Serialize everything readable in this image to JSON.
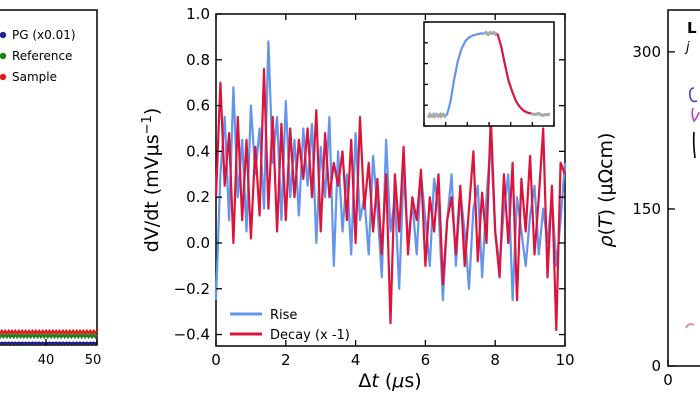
{
  "chart_data": [
    {
      "type": "line",
      "panel": "left (cropped)",
      "xlim": [
        30,
        50
      ],
      "x_ticks": [
        "40",
        "50"
      ],
      "legend": {
        "placement": "top",
        "entries": [
          {
            "name": "PG (x0.01)",
            "color": "#1f1f8f"
          },
          {
            "name": "Reference",
            "color": "#1a7f1a"
          },
          {
            "name": "Sample",
            "color": "#e31a1c"
          }
        ]
      },
      "series": [
        {
          "name": "Reference",
          "color": "#1a7f1a",
          "approx_level": "flat, lowest part of panel"
        },
        {
          "name": "Sample",
          "color": "#e31a1c",
          "approx_level": "flat, just above axis"
        },
        {
          "name": "PG (x0.01)",
          "color": "#1f1f8f",
          "approx_level": "flat, at axis"
        }
      ]
    },
    {
      "type": "line",
      "panel": "center",
      "xlabel": "Δt (μs)",
      "ylabel": "dV/dt (mVμs⁻¹)",
      "xlim": [
        0,
        10
      ],
      "ylim": [
        -0.45,
        1.0
      ],
      "x_ticks": [
        0,
        2,
        4,
        6,
        8,
        10
      ],
      "y_ticks": [
        -0.4,
        -0.2,
        0.0,
        0.2,
        0.4,
        0.6,
        0.8,
        1.0
      ],
      "x_tick_labels": [
        "0",
        "2",
        "4",
        "6",
        "8",
        "10"
      ],
      "y_tick_labels": [
        "−0.4",
        "−0.2",
        "0.0",
        "0.2",
        "0.4",
        "0.6",
        "0.8",
        "1.0"
      ],
      "legend": {
        "placement": "bottom-left",
        "entries": [
          {
            "name": "Rise",
            "color": "#6495ed"
          },
          {
            "name": "Decay (x -1)",
            "color": "#dc143c"
          }
        ]
      },
      "x": [
        0.0,
        0.125,
        0.25,
        0.375,
        0.5,
        0.625,
        0.75,
        0.875,
        1.0,
        1.125,
        1.25,
        1.375,
        1.5,
        1.625,
        1.75,
        1.875,
        2.0,
        2.125,
        2.25,
        2.375,
        2.5,
        2.625,
        2.75,
        2.875,
        3.0,
        3.125,
        3.25,
        3.375,
        3.5,
        3.625,
        3.75,
        3.875,
        4.0,
        4.125,
        4.25,
        4.375,
        4.5,
        4.625,
        4.75,
        4.875,
        5.0,
        5.125,
        5.25,
        5.375,
        5.5,
        5.625,
        5.75,
        5.875,
        6.0,
        6.125,
        6.25,
        6.375,
        6.5,
        6.625,
        6.75,
        6.875,
        7.0,
        7.125,
        7.25,
        7.375,
        7.5,
        7.625,
        7.75,
        7.875,
        8.0,
        8.125,
        8.25,
        8.375,
        8.5,
        8.625,
        8.75,
        8.875,
        9.0,
        9.125,
        9.25,
        9.375,
        9.5,
        9.625,
        9.75,
        9.875,
        10.0
      ],
      "series": [
        {
          "name": "Rise",
          "color": "#6495ed",
          "values": [
            -0.25,
            0.3,
            0.55,
            0.1,
            0.68,
            0.2,
            0.45,
            0.05,
            0.6,
            0.3,
            0.5,
            0.15,
            0.88,
            0.35,
            0.55,
            0.1,
            0.62,
            0.2,
            0.45,
            0.12,
            0.5,
            0.25,
            0.52,
            0.0,
            0.42,
            0.2,
            0.55,
            -0.1,
            0.4,
            0.05,
            0.3,
            -0.05,
            0.48,
            0.1,
            0.2,
            -0.05,
            0.38,
            0.15,
            -0.15,
            0.45,
            0.05,
            0.2,
            -0.2,
            0.32,
            0.0,
            0.18,
            -0.05,
            0.3,
            0.1,
            -0.1,
            0.28,
            0.15,
            -0.25,
            0.1,
            0.3,
            -0.1,
            0.22,
            0.05,
            -0.2,
            0.15,
            0.25,
            -0.15,
            0.2,
            0.45,
            0.05,
            -0.1,
            0.15,
            0.3,
            -0.25,
            0.2,
            0.05,
            -0.1,
            0.12,
            0.25,
            -0.05,
            0.15,
            0.0,
            0.2,
            -0.1,
            0.1,
            0.35
          ]
        },
        {
          "name": "Decay (x -1)",
          "color": "#dc143c",
          "values": [
            0.2,
            0.7,
            0.25,
            0.48,
            0.0,
            0.55,
            0.1,
            0.45,
            0.02,
            0.42,
            0.12,
            0.76,
            0.15,
            0.55,
            0.05,
            0.52,
            0.1,
            0.5,
            0.2,
            0.45,
            0.28,
            0.5,
            0.2,
            0.58,
            0.05,
            0.48,
            0.2,
            0.35,
            0.25,
            0.4,
            0.1,
            0.45,
            0.0,
            0.55,
            0.15,
            0.35,
            0.05,
            0.28,
            -0.05,
            0.3,
            -0.35,
            0.3,
            0.05,
            0.42,
            -0.05,
            0.2,
            0.1,
            0.32,
            -0.1,
            0.2,
            0.05,
            0.3,
            -0.18,
            0.1,
            0.2,
            -0.05,
            0.25,
            -0.1,
            0.15,
            0.4,
            -0.08,
            0.22,
            0.0,
            0.55,
            0.05,
            -0.15,
            0.3,
            0.0,
            0.35,
            -0.25,
            0.28,
            0.05,
            0.38,
            -0.05,
            0.2,
            0.5,
            -0.15,
            0.25,
            -0.38,
            0.35,
            0.3
          ]
        }
      ],
      "inset": {
        "type": "line",
        "description_free": true,
        "segments": [
          {
            "color": "#aaaaaa",
            "x": [
              0,
              1,
              2,
              3,
              4,
              5,
              6,
              7,
              8,
              9,
              10,
              11,
              12,
              13,
              14,
              15,
              16,
              17,
              18,
              19,
              20
            ],
            "values": [
              0.05,
              0.04,
              0.06,
              0.05,
              0.04,
              0.05,
              0.06,
              0.04,
              0.05,
              0.06,
              0.05,
              0.04,
              0.05,
              0.06,
              0.04,
              0.05,
              0.06,
              0.05,
              0.04,
              0.05,
              0.05
            ]
          },
          {
            "color": "#6495ed",
            "x": [
              20,
              24,
              28,
              32,
              36,
              40,
              44,
              48,
              52,
              56,
              60
            ],
            "values": [
              0.05,
              0.2,
              0.45,
              0.65,
              0.78,
              0.86,
              0.9,
              0.92,
              0.93,
              0.94,
              0.94
            ]
          },
          {
            "color": "#aaaaaa",
            "x": [
              60,
              62,
              64,
              66,
              68,
              70,
              72,
              74
            ],
            "values": [
              0.94,
              0.95,
              0.93,
              0.95,
              0.94,
              0.95,
              0.93,
              0.94
            ]
          },
          {
            "color": "#dc143c",
            "x": [
              74,
              78,
              82,
              86,
              90,
              94,
              98,
              102,
              106,
              110
            ],
            "values": [
              0.94,
              0.8,
              0.6,
              0.42,
              0.3,
              0.2,
              0.14,
              0.1,
              0.08,
              0.07
            ]
          },
          {
            "color": "#aaaaaa",
            "x": [
              110,
              114,
              118,
              122,
              126,
              130
            ],
            "values": [
              0.07,
              0.06,
              0.07,
              0.05,
              0.06,
              0.06
            ]
          }
        ]
      }
    },
    {
      "type": "line",
      "panel": "right (cropped)",
      "ylabel": "ρ(T) (μΩcm)",
      "ylim": [
        0,
        340
      ],
      "y_ticks": [
        0,
        150,
        300
      ],
      "y_tick_labels": [
        "0",
        "150",
        "300"
      ],
      "x_tick_labels": [
        "0"
      ]
    }
  ]
}
